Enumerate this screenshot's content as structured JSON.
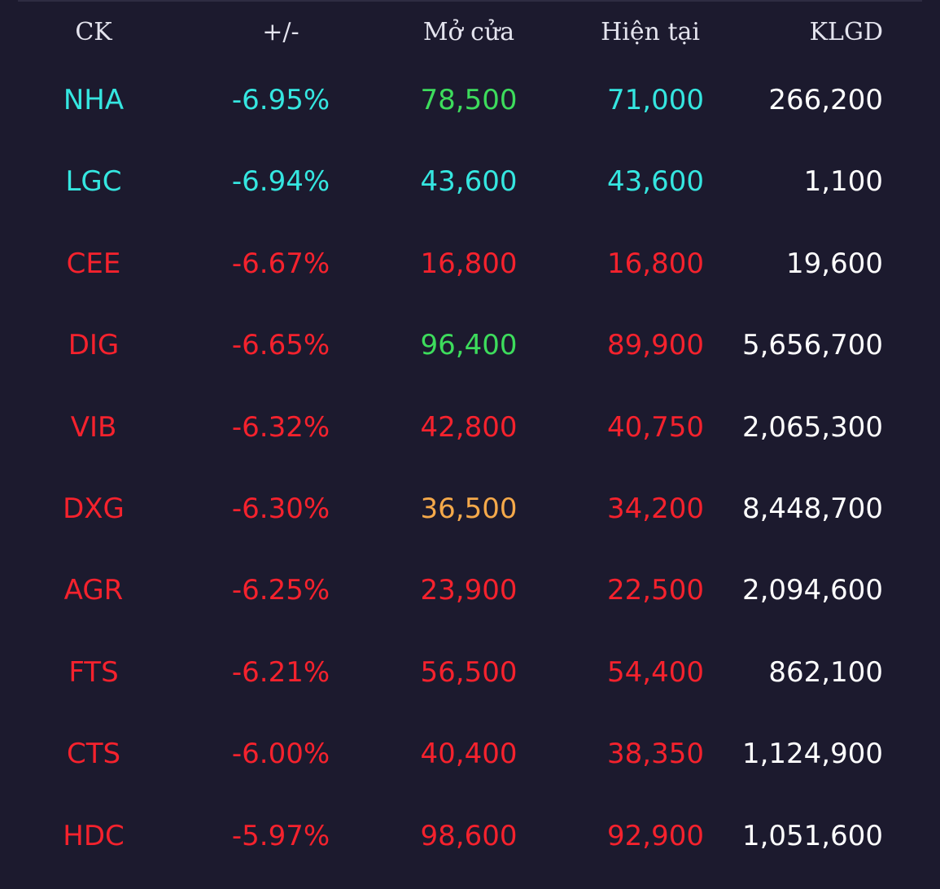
{
  "colors": {
    "background": "#1c1a2e",
    "floor": "#35e6e0",
    "down": "#f5222d",
    "up": "#3ddc5c",
    "reference": "#f5a94a",
    "volume": "#ffffff",
    "header": "#e4e4ee"
  },
  "header": {
    "ck": "CK",
    "change": "+/-",
    "open": "Mở cửa",
    "current": "Hiện tại",
    "volume": "KLGD"
  },
  "rows": [
    {
      "ck": "NHA",
      "change": "-6.95%",
      "open": "78,500",
      "current": "71,000",
      "volume": "266,200",
      "ck_color": "#35e6e0",
      "open_color": "#3ddc5c",
      "current_color": "#35e6e0"
    },
    {
      "ck": "LGC",
      "change": "-6.94%",
      "open": "43,600",
      "current": "43,600",
      "volume": "1,100",
      "ck_color": "#35e6e0",
      "open_color": "#35e6e0",
      "current_color": "#35e6e0"
    },
    {
      "ck": "CEE",
      "change": "-6.67%",
      "open": "16,800",
      "current": "16,800",
      "volume": "19,600",
      "ck_color": "#f5222d",
      "open_color": "#f5222d",
      "current_color": "#f5222d"
    },
    {
      "ck": "DIG",
      "change": "-6.65%",
      "open": "96,400",
      "current": "89,900",
      "volume": "5,656,700",
      "ck_color": "#f5222d",
      "open_color": "#3ddc5c",
      "current_color": "#f5222d"
    },
    {
      "ck": "VIB",
      "change": "-6.32%",
      "open": "42,800",
      "current": "40,750",
      "volume": "2,065,300",
      "ck_color": "#f5222d",
      "open_color": "#f5222d",
      "current_color": "#f5222d"
    },
    {
      "ck": "DXG",
      "change": "-6.30%",
      "open": "36,500",
      "current": "34,200",
      "volume": "8,448,700",
      "ck_color": "#f5222d",
      "open_color": "#f5a94a",
      "current_color": "#f5222d"
    },
    {
      "ck": "AGR",
      "change": "-6.25%",
      "open": "23,900",
      "current": "22,500",
      "volume": "2,094,600",
      "ck_color": "#f5222d",
      "open_color": "#f5222d",
      "current_color": "#f5222d"
    },
    {
      "ck": "FTS",
      "change": "-6.21%",
      "open": "56,500",
      "current": "54,400",
      "volume": "862,100",
      "ck_color": "#f5222d",
      "open_color": "#f5222d",
      "current_color": "#f5222d"
    },
    {
      "ck": "CTS",
      "change": "-6.00%",
      "open": "40,400",
      "current": "38,350",
      "volume": "1,124,900",
      "ck_color": "#f5222d",
      "open_color": "#f5222d",
      "current_color": "#f5222d"
    },
    {
      "ck": "HDC",
      "change": "-5.97%",
      "open": "98,600",
      "current": "92,900",
      "volume": "1,051,600",
      "ck_color": "#f5222d",
      "open_color": "#f5222d",
      "current_color": "#f5222d"
    }
  ]
}
